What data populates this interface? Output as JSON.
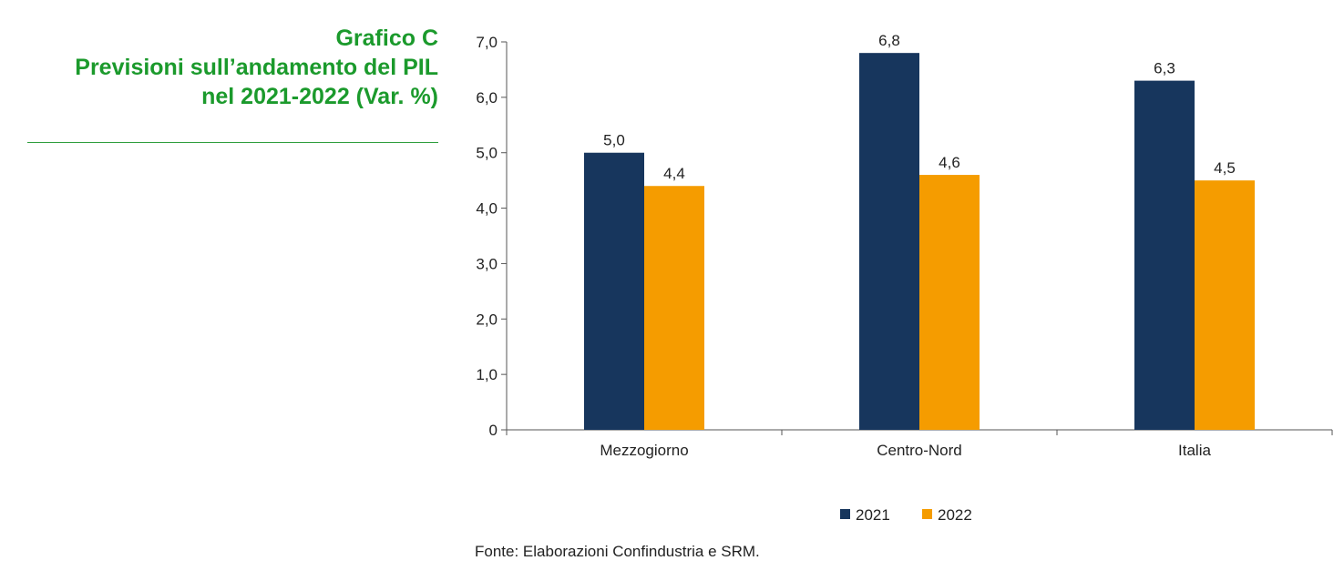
{
  "header": {
    "title_line1": "Grafico C",
    "title_line2": "Previsioni sull’andamento del PIL",
    "title_line3": "nel 2021-2022 (Var. %)"
  },
  "source": "Fonte: Elaborazioni Confindustria e SRM.",
  "colors": {
    "accent": "#1b9a2c",
    "series_2021": "#17365d",
    "series_2022": "#f59c00"
  },
  "chart_data": {
    "type": "bar",
    "title": "Previsioni sull’andamento del PIL nel 2021-2022 (Var. %)",
    "xlabel": "",
    "ylabel": "",
    "ylim": [
      0,
      7
    ],
    "yticks": [
      "0",
      "1,0",
      "2,0",
      "3,0",
      "4,0",
      "5,0",
      "6,0",
      "7,0"
    ],
    "categories": [
      "Mezzogiorno",
      "Centro-Nord",
      "Italia"
    ],
    "series": [
      {
        "name": "2021",
        "color": "#17365d",
        "values": [
          5.0,
          6.8,
          6.3
        ],
        "labels": [
          "5,0",
          "6,8",
          "6,3"
        ]
      },
      {
        "name": "2022",
        "color": "#f59c00",
        "values": [
          4.4,
          4.6,
          4.5
        ],
        "labels": [
          "4,4",
          "4,6",
          "4,5"
        ]
      }
    ],
    "grid": false,
    "legend": "bottom"
  }
}
